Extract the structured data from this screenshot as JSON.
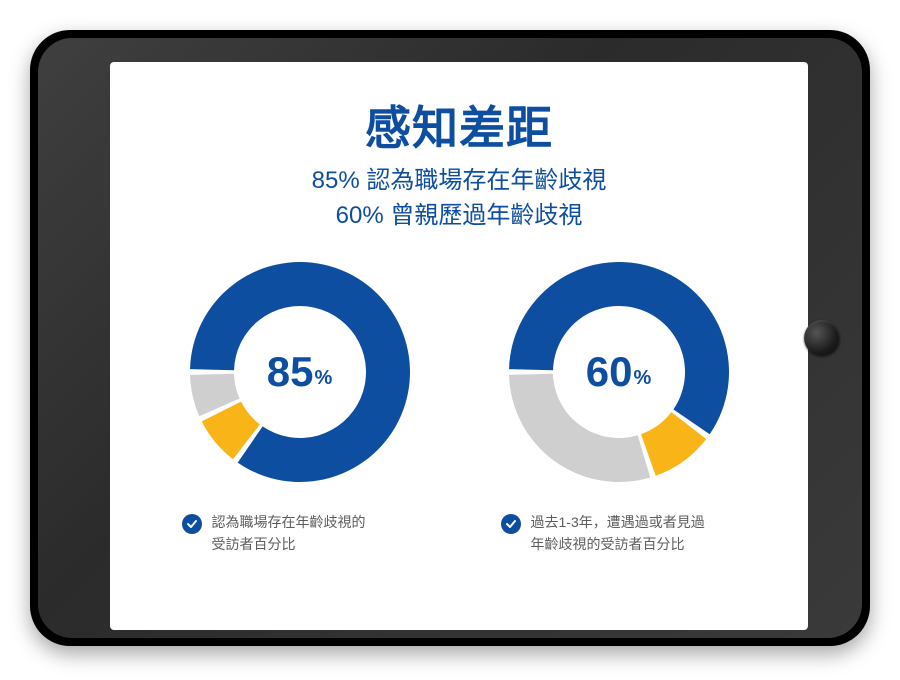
{
  "colors": {
    "primary": "#0e4ea1",
    "accent": "#f9b417",
    "muted": "#cfcfcf",
    "title": "#0e4ea1",
    "caption_text": "#5c5c5c",
    "check_bg": "#0e4ea1",
    "check_fg": "#ffffff",
    "screen_bg": "#ffffff"
  },
  "title": "感知差距",
  "subtitle_line1": "85% 認為職場存在年齡歧視",
  "subtitle_line2": "60% 曾親歷過年齡歧視",
  "donut_style": {
    "outer_radius": 100,
    "inner_radius": 60,
    "gap_deg": 3,
    "start_angle_deg": -90
  },
  "charts": [
    {
      "id": "left",
      "center_value": "85",
      "center_suffix": "%",
      "center_fontsize": 42,
      "slices": [
        {
          "value": 85,
          "color": "#0e4ea1"
        },
        {
          "value": 8,
          "color": "#f9b417"
        },
        {
          "value": 7,
          "color": "#cfcfcf"
        }
      ],
      "caption": "認為職場存在年齡歧視的\n受訪者百分比"
    },
    {
      "id": "right",
      "center_value": "60",
      "center_suffix": "%",
      "center_fontsize": 42,
      "slices": [
        {
          "value": 60,
          "color": "#0e4ea1"
        },
        {
          "value": 10,
          "color": "#f9b417"
        },
        {
          "value": 30,
          "color": "#cfcfcf"
        }
      ],
      "caption": "過去1-3年，遭遇過或者見過\n年齡歧視的受訪者百分比"
    }
  ]
}
